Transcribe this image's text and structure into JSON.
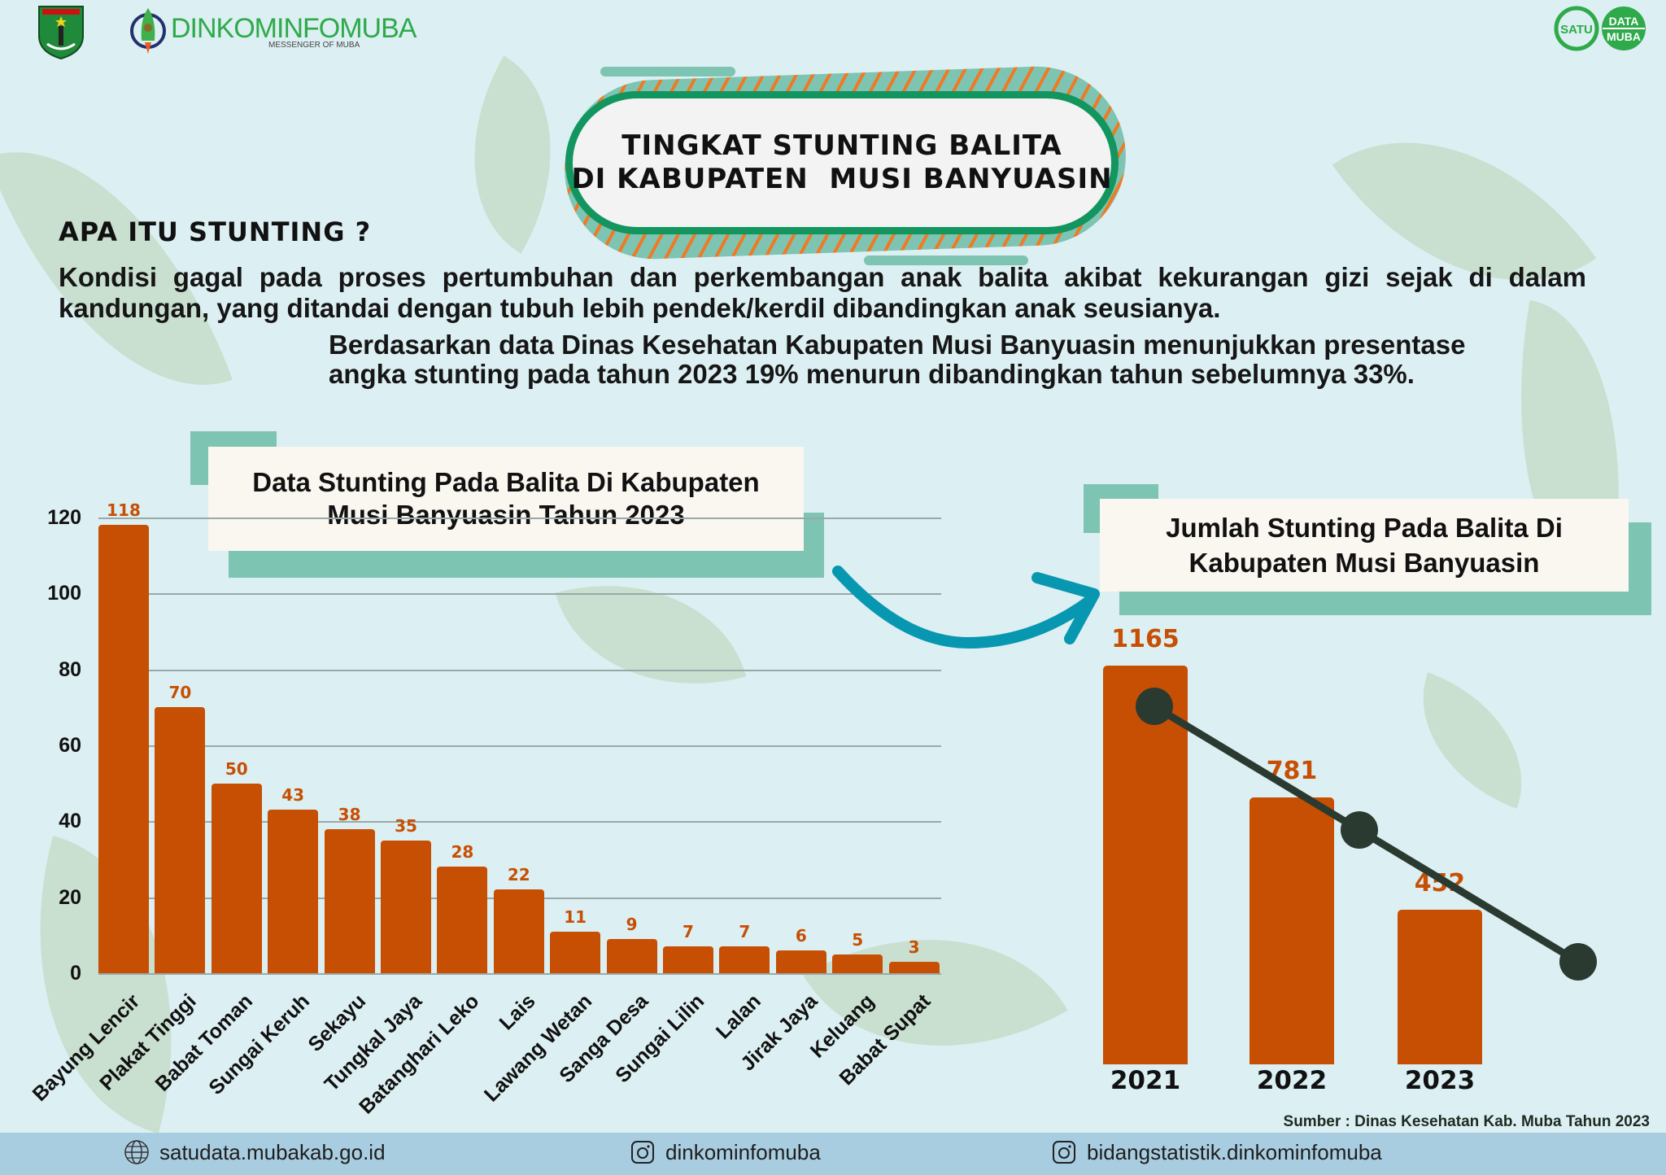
{
  "header": {
    "logo_left_alt": "Musi Banyuasin",
    "dinkom_part1": "DINKOMINFO",
    "dinkom_part2": "MUBA",
    "dinkom_tagline": "MESSENGER OF MUBA",
    "satu_data_left": "SATU",
    "satu_data_top": "DATA",
    "satu_data_bottom": "MUBA"
  },
  "title": {
    "line1": "TINGKAT STUNTING BALITA",
    "line2": "DI KABUPATEN  MUSI BANYUASIN"
  },
  "intro": {
    "heading": "APA ITU STUNTING ?",
    "definition": "Kondisi gagal pada proses pertumbuhan dan perkembangan anak balita akibat kekurangan gizi sejak di dalam kandungan, yang ditandai dengan tubuh lebih pendek/kerdil dibandingkan anak seusianya.",
    "summary": "Berdasarkan data Dinas Kesehatan Kabupaten Musi Banyuasin menunjukkan presentase angka stunting pada tahun 2023 19% menurun dibandingkan tahun sebelumnya 33%."
  },
  "colors": {
    "background": "#dceff2",
    "bar": "#c74f04",
    "accent_teal": "#7ec4b3",
    "title_border": "#12955f",
    "arrow": "#0797b0",
    "line": "#2b3a30",
    "footer": "#a9cde0"
  },
  "chart_data": [
    {
      "type": "bar",
      "title": "Data Stunting Pada Balita Di Kabupaten Musi Banyuasin Tahun 2023",
      "xlabel": "",
      "ylabel": "",
      "ylim": [
        0,
        120
      ],
      "yticks": [
        0,
        20,
        40,
        60,
        80,
        100,
        120
      ],
      "grid": true,
      "categories": [
        "Bayung Lencir",
        "Plakat Tinggi",
        "Babat Toman",
        "Sungai Keruh",
        "Sekayu",
        "Tungkal Jaya",
        "Batanghari Leko",
        "Lais",
        "Lawang Wetan",
        "Sanga Desa",
        "Sungai Lilin",
        "Lalan",
        "Jirak Jaya",
        "Keluang",
        "Babat Supat"
      ],
      "values": [
        118,
        70,
        50,
        43,
        38,
        35,
        28,
        22,
        11,
        9,
        7,
        7,
        6,
        5,
        3
      ],
      "data_labels": true
    },
    {
      "type": "bar",
      "overlay": "line",
      "title": "Jumlah Stunting Pada Balita Di Kabupaten Musi Banyuasin",
      "categories": [
        "2021",
        "2022",
        "2023"
      ],
      "values": [
        1165,
        781,
        452
      ],
      "data_labels": true,
      "grid": false
    }
  ],
  "left_chart": {
    "title_line1": "Data Stunting Pada Balita Di Kabupaten",
    "title_line2": "Musi Banyuasin Tahun 2023",
    "yticks": [
      "120",
      "100",
      "80",
      "60",
      "40",
      "20",
      "0"
    ]
  },
  "right_chart": {
    "title_line1": "Jumlah Stunting Pada Balita Di",
    "title_line2": "Kabupaten Musi Banyuasin"
  },
  "source": "Sumber : Dinas Kesehatan Kab. Muba Tahun 2023",
  "footer": {
    "website": "satudata.mubakab.go.id",
    "instagram1": "dinkominfomuba",
    "instagram2": "bidangstatistik.dinkominfomuba",
    "website_icon": "globe-icon",
    "instagram_icon": "instagram-icon"
  }
}
